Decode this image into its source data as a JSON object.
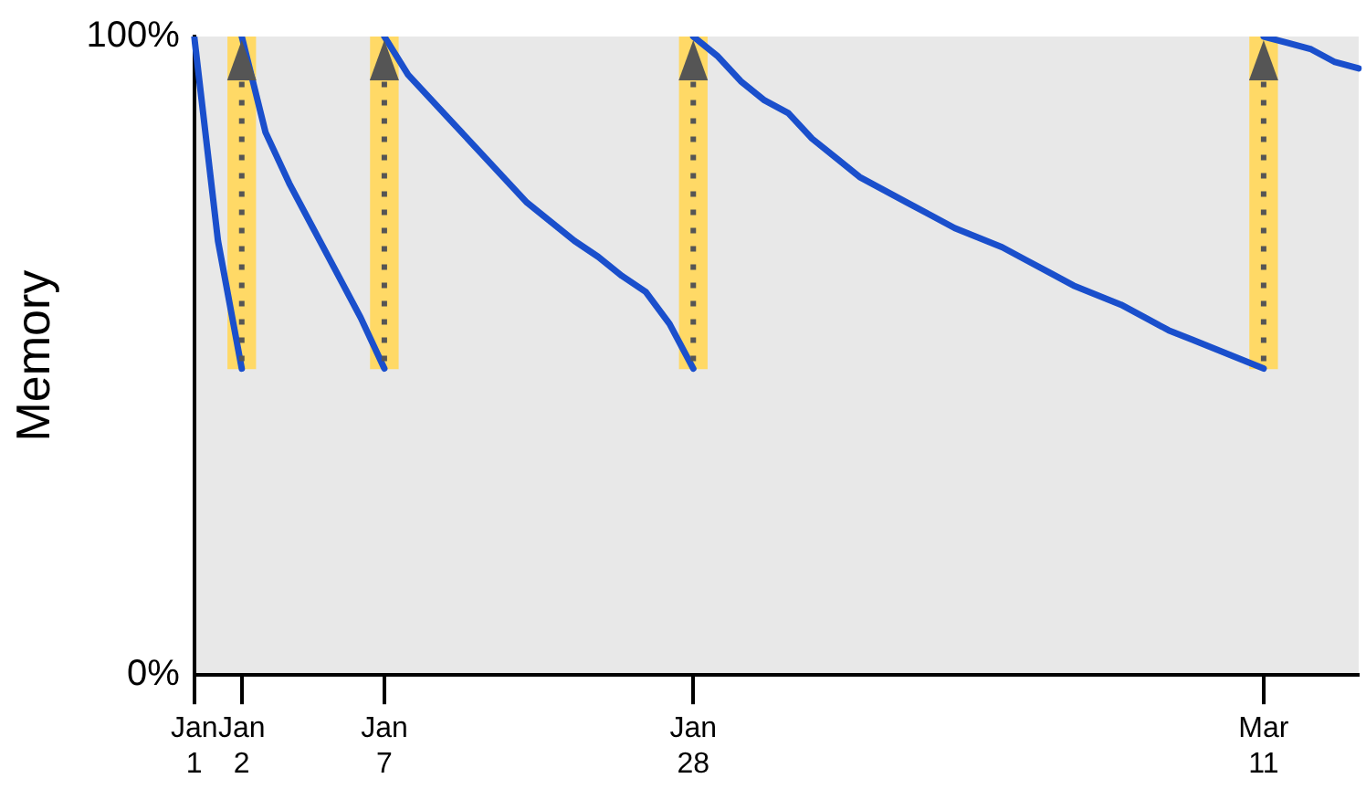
{
  "chart_data": {
    "type": "line",
    "ylabel": "Memory",
    "ylim": [
      0,
      100
    ],
    "categories": [
      "Jan 1",
      null,
      "Jan 2",
      null,
      null,
      null,
      null,
      null,
      "Jan 7",
      null,
      null,
      null,
      null,
      null,
      null,
      null,
      null,
      null,
      null,
      null,
      null,
      "Jan 28",
      null,
      null,
      null,
      null,
      null,
      null,
      null,
      null,
      null,
      null,
      null,
      null,
      null,
      null,
      null,
      null,
      null,
      null,
      null,
      null,
      null,
      null,
      null,
      "Mar 11",
      null,
      null,
      null,
      null
    ],
    "yticks": [
      {
        "value": 0,
        "label": "0%"
      },
      {
        "value": 100,
        "label": "100%"
      }
    ],
    "grid": false,
    "legend": false,
    "marker": "none",
    "line_style": "solid",
    "series": [
      {
        "color": "#1a4fcc",
        "values": [
          100,
          68,
          48,
          null,
          null,
          null,
          null,
          null,
          null,
          null,
          null,
          null,
          null,
          null,
          null,
          null,
          null,
          null,
          null,
          null,
          null,
          null,
          null,
          null,
          null,
          null,
          null,
          null,
          null,
          null,
          null,
          null,
          null,
          null,
          null,
          null,
          null,
          null,
          null,
          null,
          null,
          null,
          null,
          null,
          null,
          null,
          null,
          null,
          null,
          null
        ]
      },
      {
        "color": "#1a4fcc",
        "values": [
          null,
          null,
          100,
          85,
          77,
          70,
          63,
          56,
          48,
          null,
          null,
          null,
          null,
          null,
          null,
          null,
          null,
          null,
          null,
          null,
          null,
          null,
          null,
          null,
          null,
          null,
          null,
          null,
          null,
          null,
          null,
          null,
          null,
          null,
          null,
          null,
          null,
          null,
          null,
          null,
          null,
          null,
          null,
          null,
          null,
          null,
          null,
          null,
          null,
          null
        ]
      },
      {
        "color": "#1a4fcc",
        "values": [
          null,
          null,
          null,
          null,
          null,
          null,
          null,
          null,
          100,
          94,
          90,
          86,
          82,
          78,
          74,
          71,
          68,
          65.5,
          62.5,
          60,
          55,
          48,
          null,
          null,
          null,
          null,
          null,
          null,
          null,
          null,
          null,
          null,
          null,
          null,
          null,
          null,
          null,
          null,
          null,
          null,
          null,
          null,
          null,
          null,
          null,
          null,
          null,
          null,
          null,
          null
        ]
      },
      {
        "color": "#1a4fcc",
        "values": [
          null,
          null,
          null,
          null,
          null,
          null,
          null,
          null,
          null,
          null,
          null,
          null,
          null,
          null,
          null,
          null,
          null,
          null,
          null,
          null,
          null,
          100,
          97,
          93,
          90,
          88,
          84,
          81,
          78,
          76,
          74,
          72,
          70,
          68.5,
          67,
          65,
          63,
          61,
          59.5,
          58,
          56,
          54,
          52.5,
          51,
          49.5,
          48,
          null,
          null,
          null,
          null
        ]
      },
      {
        "color": "#1a4fcc",
        "values": [
          null,
          null,
          null,
          null,
          null,
          null,
          null,
          null,
          null,
          null,
          null,
          null,
          null,
          null,
          null,
          null,
          null,
          null,
          null,
          null,
          null,
          null,
          null,
          null,
          null,
          null,
          null,
          null,
          null,
          null,
          null,
          null,
          null,
          null,
          null,
          null,
          null,
          null,
          null,
          null,
          null,
          null,
          null,
          null,
          null,
          100,
          99,
          98,
          96,
          95
        ]
      },
      {
        "type": "bar",
        "color": "#ffd966",
        "base": [
          null,
          null,
          48,
          null,
          null,
          null,
          null,
          null,
          48,
          null,
          null,
          null,
          null,
          null,
          null,
          null,
          null,
          null,
          null,
          null,
          null,
          48,
          null,
          null,
          null,
          null,
          null,
          null,
          null,
          null,
          null,
          null,
          null,
          null,
          null,
          null,
          null,
          null,
          null,
          null,
          null,
          null,
          null,
          null,
          null,
          48,
          null,
          null,
          null,
          null
        ],
        "values": [
          null,
          null,
          52,
          null,
          null,
          null,
          null,
          null,
          52,
          null,
          null,
          null,
          null,
          null,
          null,
          null,
          null,
          null,
          null,
          null,
          null,
          52,
          null,
          null,
          null,
          null,
          null,
          null,
          null,
          null,
          null,
          null,
          null,
          null,
          null,
          null,
          null,
          null,
          null,
          null,
          null,
          null,
          null,
          null,
          null,
          52,
          null,
          null,
          null,
          null
        ]
      }
    ]
  }
}
